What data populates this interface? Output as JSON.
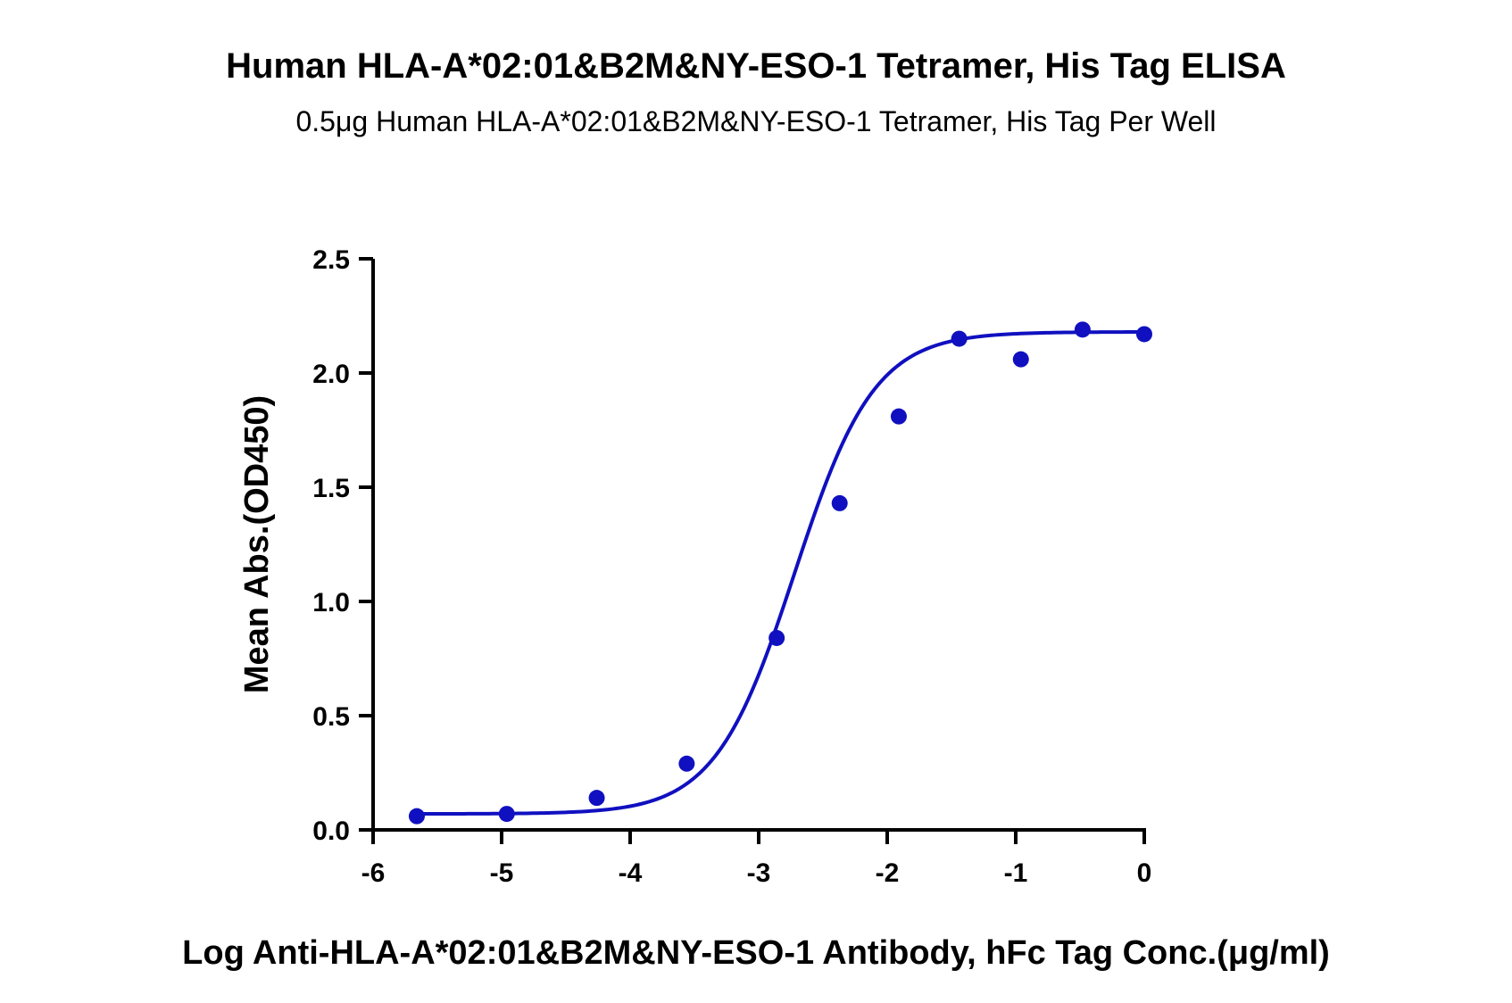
{
  "chart_data": {
    "type": "scatter",
    "title": "Human HLA-A*02:01&B2M&NY-ESO-1 Tetramer, His Tag ELISA",
    "subtitle": "0.5μg Human HLA-A*02:01&B2M&NY-ESO-1 Tetramer, His Tag Per Well",
    "xlabel": "Log Anti-HLA-A*02:01&B2M&NY-ESO-1 Antibody, hFc Tag Conc.(μg/ml)",
    "ylabel": "Mean Abs.(OD450)",
    "xlim": [
      -6,
      0
    ],
    "ylim": [
      0,
      2.5
    ],
    "x_ticks": [
      "-6",
      "-5",
      "-4",
      "-3",
      "-2",
      "-1",
      "0"
    ],
    "x_tick_values": [
      -6,
      -5,
      -4,
      -3,
      -2,
      -1,
      0
    ],
    "y_ticks": [
      "0.0",
      "0.5",
      "1.0",
      "1.5",
      "2.0",
      "2.5"
    ],
    "y_tick_values": [
      0,
      0.5,
      1.0,
      1.5,
      2.0,
      2.5
    ],
    "grid": false,
    "color": "#1010C0",
    "series": [
      {
        "points": [
          {
            "x": -5.66,
            "y": 0.06
          },
          {
            "x": -4.96,
            "y": 0.07
          },
          {
            "x": -4.26,
            "y": 0.14
          },
          {
            "x": -3.56,
            "y": 0.29
          },
          {
            "x": -2.86,
            "y": 0.84
          },
          {
            "x": -2.37,
            "y": 1.43
          },
          {
            "x": -1.91,
            "y": 1.81
          },
          {
            "x": -1.44,
            "y": 2.15
          },
          {
            "x": -0.96,
            "y": 2.06
          },
          {
            "x": -0.48,
            "y": 2.19
          },
          {
            "x": 0.0,
            "y": 2.17
          }
        ],
        "fit_curve": {
          "model": "4PL",
          "bottom": 0.07,
          "top": 2.18,
          "log_ec50": -2.72,
          "hill_slope": 1.4
        }
      }
    ]
  }
}
